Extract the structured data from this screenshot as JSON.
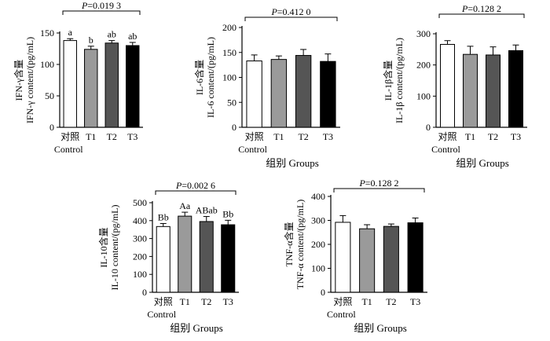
{
  "chart_data": [
    {
      "type": "bar",
      "categories": [
        "对照\nControl",
        "T1",
        "T2",
        "T3"
      ],
      "values": [
        138,
        124,
        134,
        130
      ],
      "errors": [
        3,
        5,
        4,
        5
      ],
      "letters": [
        "a",
        "b",
        "ab",
        "ab"
      ],
      "p_value": "P=0.019 3",
      "ylabel_cn": "IFN-γ含量",
      "ylabel_en": "IFN-γ content/(pg/mL)",
      "ylim": [
        0,
        150
      ],
      "yticks": [
        "0",
        "50",
        "100",
        "150"
      ]
    },
    {
      "type": "bar",
      "categories": [
        "对照\nControl",
        "T1",
        "T2",
        "T3"
      ],
      "values": [
        133,
        136,
        144,
        132
      ],
      "errors": [
        12,
        7,
        12,
        15
      ],
      "letters": [
        "",
        "",
        "",
        ""
      ],
      "p_value": "P=0.412 0",
      "ylabel_cn": "IL-6含量",
      "ylabel_en": "IL-6 content/(pg/mL)",
      "ylim": [
        0,
        200
      ],
      "yticks": [
        "0",
        "50",
        "100",
        "150",
        "200"
      ],
      "xlabel": "组别  Groups"
    },
    {
      "type": "bar",
      "categories": [
        "对照\nControl",
        "T1",
        "T2",
        "T3"
      ],
      "values": [
        266,
        234,
        232,
        246
      ],
      "errors": [
        12,
        26,
        26,
        18
      ],
      "letters": [
        "",
        "",
        "",
        ""
      ],
      "p_value": "P=0.128 2",
      "ylabel_cn": "IL-1β含量",
      "ylabel_en": "IL-1β content/(pg/mL)",
      "ylim": [
        0,
        300
      ],
      "yticks": [
        "0",
        "100",
        "200",
        "300"
      ],
      "xlabel": "组别  Groups"
    },
    {
      "type": "bar",
      "categories": [
        "对照\nControl",
        "T1",
        "T2",
        "T3"
      ],
      "values": [
        367,
        425,
        395,
        377
      ],
      "errors": [
        17,
        22,
        28,
        25
      ],
      "letters": [
        "Bb",
        "Aa",
        "ABab",
        "Bb"
      ],
      "p_value": "P=0.002 6",
      "ylabel_cn": "IL-10含量",
      "ylabel_en": "IL-10 content/(pg/mL)",
      "ylim": [
        0,
        500
      ],
      "yticks": [
        "0",
        "100",
        "200",
        "300",
        "400",
        "500"
      ],
      "xlabel": "组别  Groups"
    },
    {
      "type": "bar",
      "categories": [
        "对照\nControl",
        "T1",
        "T2",
        "T3"
      ],
      "values": [
        292,
        265,
        275,
        290
      ],
      "errors": [
        28,
        17,
        10,
        20
      ],
      "letters": [
        "",
        "",
        "",
        ""
      ],
      "p_value": "P=0.128 2",
      "ylabel_cn": "TNF-α含量",
      "ylabel_en": "TNF-α content/(pg/mL)",
      "ylim": [
        0,
        400
      ],
      "yticks": [
        "0",
        "100",
        "200",
        "300",
        "400"
      ],
      "xlabel": "组别  Groups"
    }
  ],
  "bar_fills": [
    "#ffffff",
    "#9a9a9a",
    "#555555",
    "#000000"
  ],
  "axis_color": "#000000"
}
